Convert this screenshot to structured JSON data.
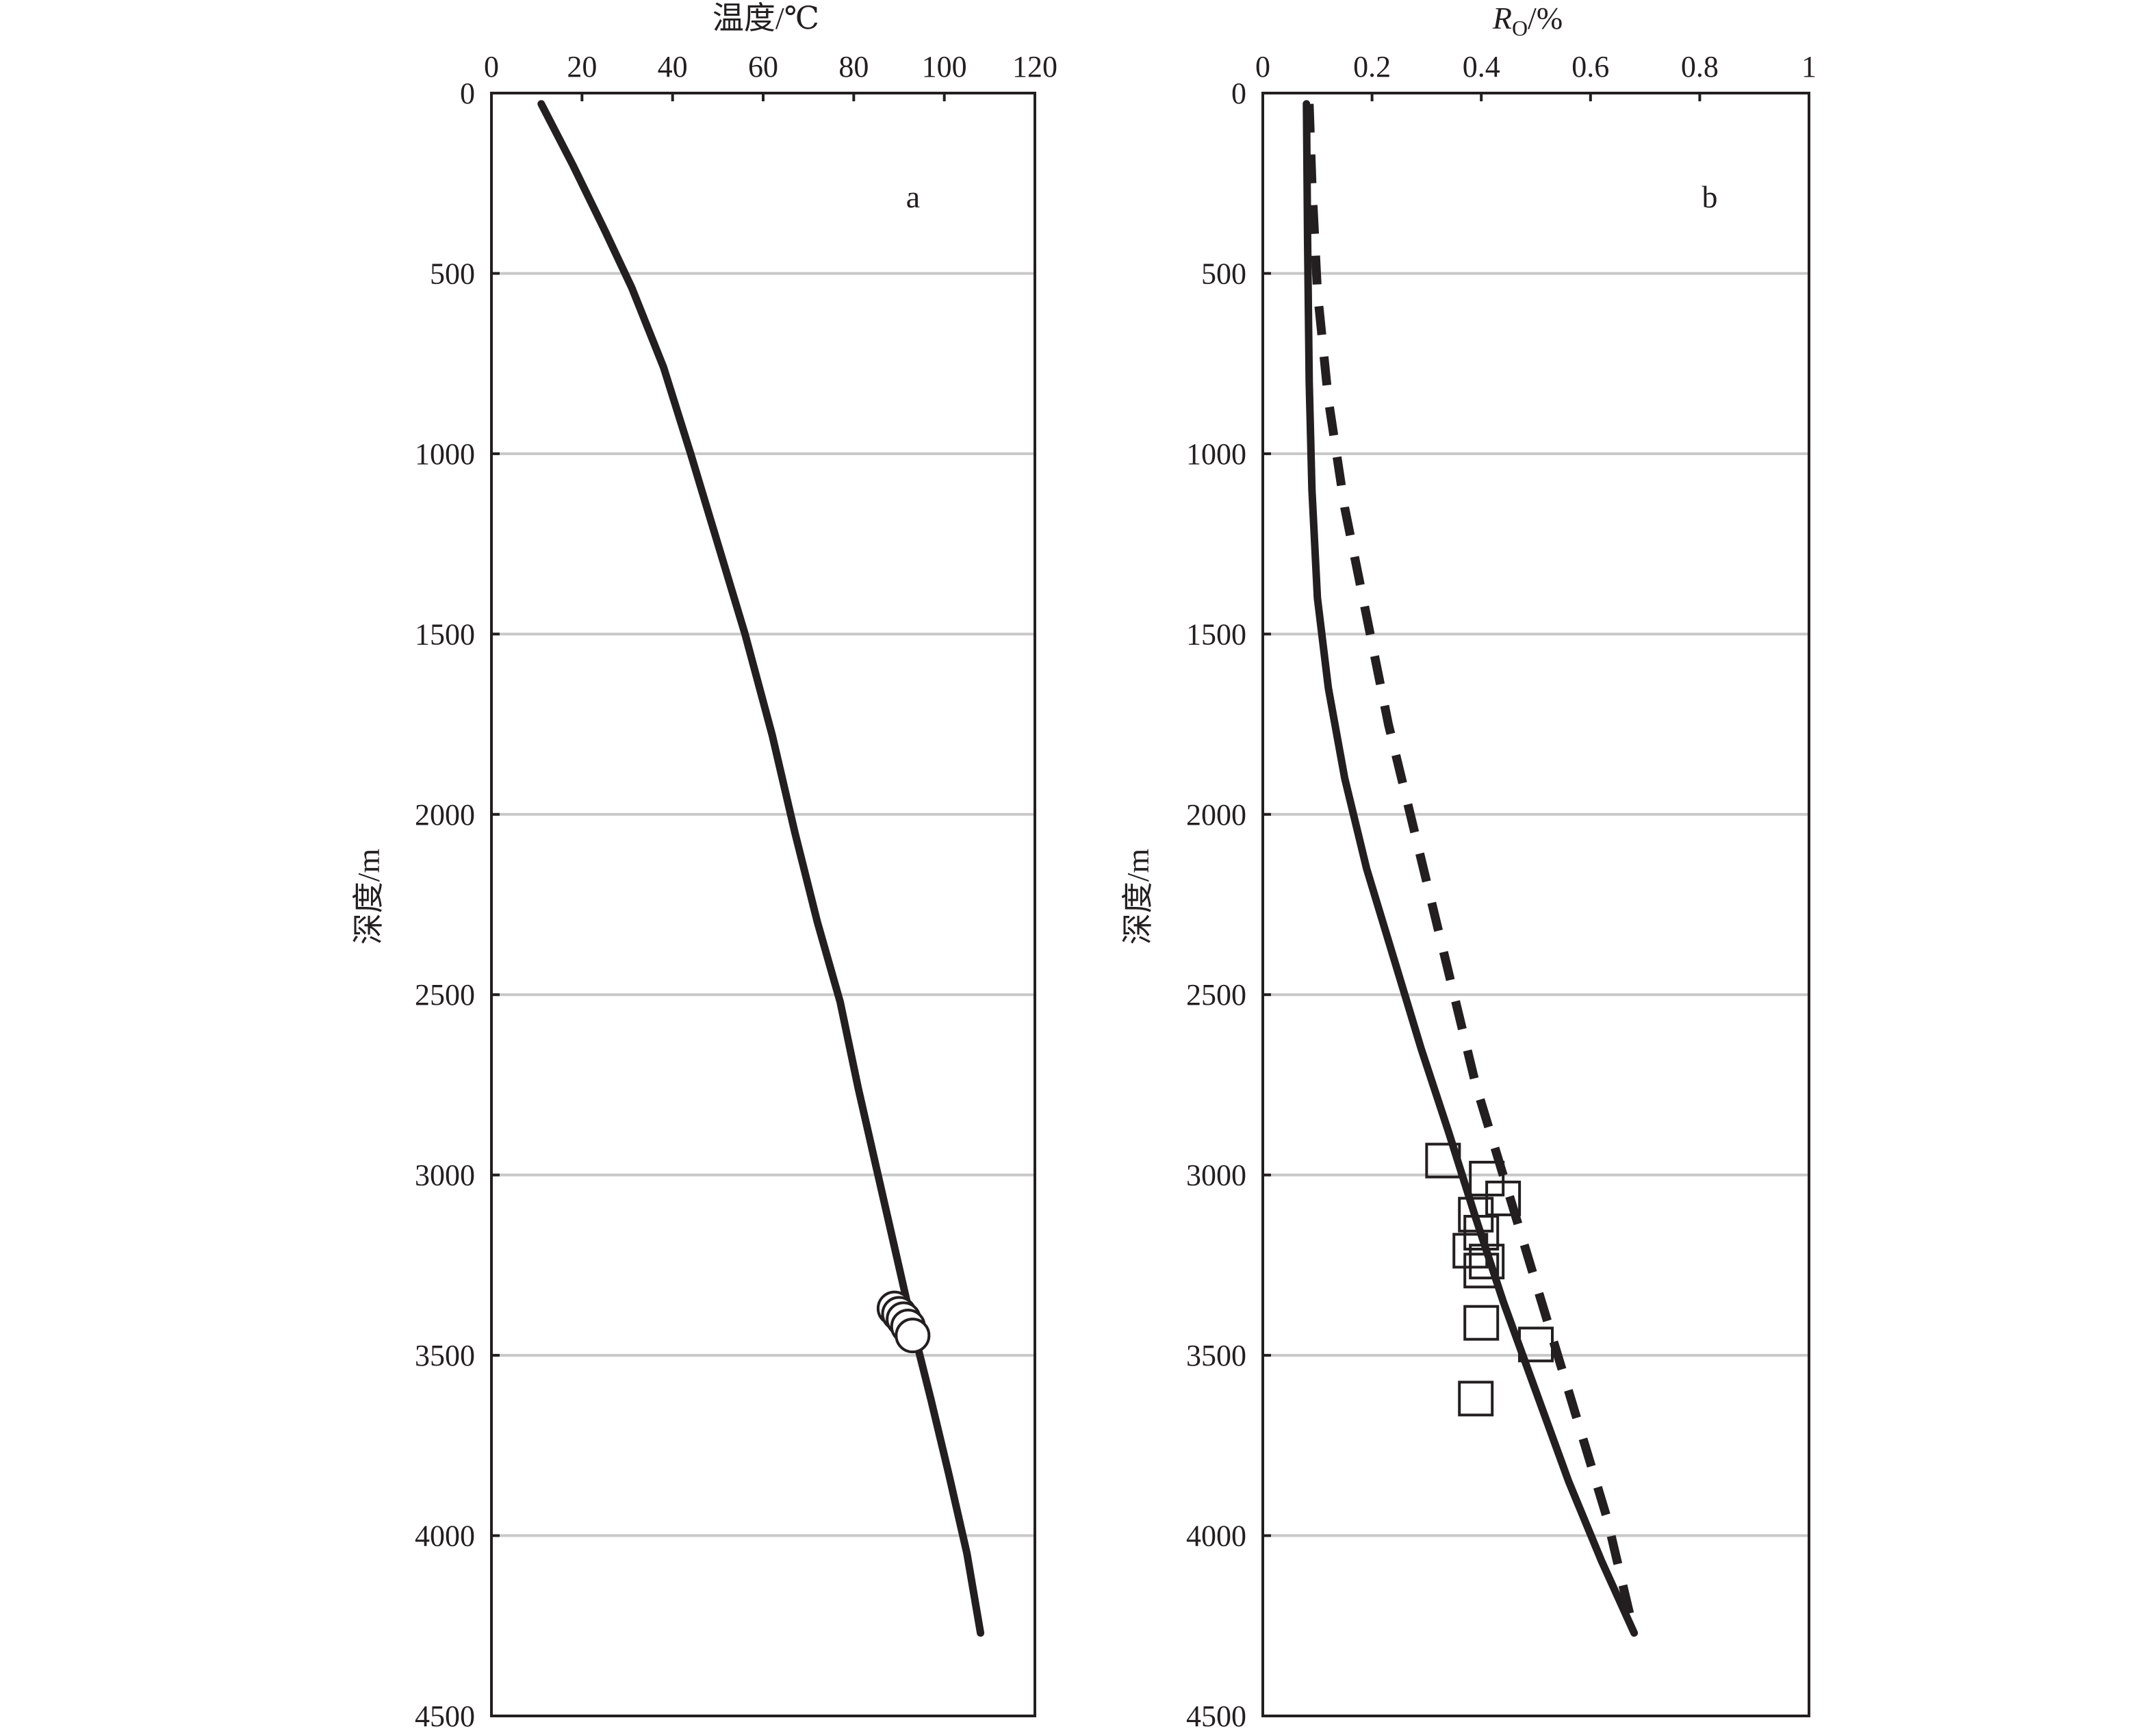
{
  "chart_data": [
    {
      "type": "line",
      "panel_label": "a",
      "xlabel": "温度/℃",
      "ylabel": "深度/m",
      "xlim": [
        0,
        120
      ],
      "ylim": [
        0,
        4500
      ],
      "y_inverted": true,
      "x_axis_position": "top",
      "xticks": [
        "0",
        "20",
        "40",
        "60",
        "80",
        "100",
        "120"
      ],
      "yticks": [
        "0",
        "500",
        "1000",
        "1500",
        "2000",
        "2500",
        "3000",
        "3500",
        "4000",
        "4500"
      ],
      "grid": "horizontal",
      "series": [
        {
          "style": "solid",
          "x": [
            11,
            18,
            25,
            31,
            38,
            44,
            50,
            56,
            62,
            67,
            72,
            77,
            81,
            85,
            89,
            93,
            97,
            101,
            105,
            108
          ],
          "y": [
            30,
            200,
            380,
            540,
            760,
            1000,
            1250,
            1500,
            1780,
            2050,
            2300,
            2520,
            2760,
            2980,
            3200,
            3420,
            3620,
            3830,
            4050,
            4270
          ]
        },
        {
          "style": "markers",
          "marker": "circle",
          "x": [
            89,
            90,
            91,
            92,
            93
          ],
          "y": [
            3370,
            3385,
            3400,
            3420,
            3445
          ]
        }
      ]
    },
    {
      "type": "line",
      "panel_label": "b",
      "xlabel": "R",
      "xlabel_sub": "O",
      "xlabel_suffix": "/%",
      "ylabel": "深度/m",
      "xlim": [
        0,
        1
      ],
      "ylim": [
        0,
        4500
      ],
      "y_inverted": true,
      "x_axis_position": "top",
      "xticks": [
        "0",
        "0.2",
        "0.4",
        "0.6",
        "0.8",
        "1"
      ],
      "yticks": [
        "0",
        "500",
        "1000",
        "1500",
        "2000",
        "2500",
        "3000",
        "3500",
        "4000",
        "4500"
      ],
      "grid": "horizontal",
      "series": [
        {
          "style": "solid",
          "x": [
            0.08,
            0.082,
            0.085,
            0.09,
            0.1,
            0.12,
            0.15,
            0.19,
            0.24,
            0.29,
            0.34,
            0.39,
            0.44,
            0.5,
            0.56,
            0.62,
            0.68
          ],
          "y": [
            30,
            400,
            800,
            1100,
            1400,
            1650,
            1900,
            2150,
            2400,
            2650,
            2880,
            3120,
            3350,
            3600,
            3850,
            4070,
            4270
          ]
        },
        {
          "style": "dashed",
          "x": [
            0.085,
            0.09,
            0.1,
            0.12,
            0.15,
            0.19,
            0.23,
            0.27,
            0.31,
            0.35,
            0.39,
            0.43,
            0.47,
            0.51,
            0.55,
            0.59,
            0.63,
            0.68
          ],
          "y": [
            30,
            250,
            550,
            850,
            1150,
            1450,
            1750,
            2000,
            2250,
            2500,
            2750,
            2950,
            3150,
            3350,
            3550,
            3750,
            3950,
            4270
          ]
        },
        {
          "style": "markers",
          "marker": "square",
          "x": [
            0.33,
            0.41,
            0.44,
            0.39,
            0.4,
            0.41,
            0.38,
            0.4,
            0.4,
            0.5,
            0.39
          ],
          "y": [
            2960,
            3010,
            3065,
            3110,
            3160,
            3240,
            3210,
            3265,
            3410,
            3470,
            3620
          ]
        }
      ]
    }
  ]
}
